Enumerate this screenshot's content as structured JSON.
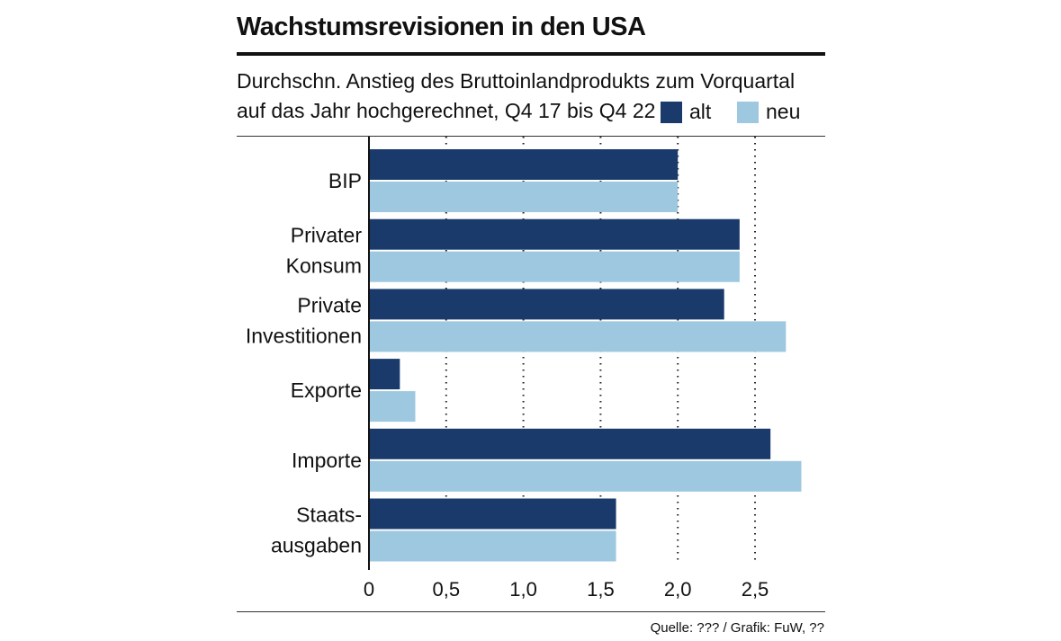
{
  "title": "Wachstumsrevisionen in den USA",
  "subtitle_line1": "Durchschn. Anstieg des Bruttoinlandprodukts zum Vorquartal",
  "subtitle_line2": "auf das Jahr hochgerechnet, Q4 17 bis Q4 22",
  "source": "Quelle: ??? / Grafik: FuW, ??",
  "colors": {
    "alt": "#1a3a6b",
    "neu": "#9dc8e0"
  },
  "chart_data": {
    "type": "bar",
    "orientation": "horizontal",
    "categories": [
      [
        "BIP"
      ],
      [
        "Privater",
        "Konsum"
      ],
      [
        "Private",
        "Investitionen"
      ],
      [
        "Exporte"
      ],
      [
        "Importe"
      ],
      [
        "Staats-",
        "ausgaben"
      ]
    ],
    "series": [
      {
        "name": "alt",
        "values": [
          2.0,
          2.4,
          2.3,
          0.2,
          2.6,
          1.6
        ]
      },
      {
        "name": "neu",
        "values": [
          2.0,
          2.4,
          2.7,
          0.3,
          2.8,
          1.6
        ]
      }
    ],
    "xlim": [
      0,
      2.9
    ],
    "xticks": [
      0,
      0.5,
      1.0,
      1.5,
      2.0,
      2.5
    ],
    "xtick_labels": [
      "0",
      "0,5",
      "1,0",
      "1,5",
      "2,0",
      "2,5"
    ],
    "grid": "vertical dotted",
    "legend": "top-right"
  }
}
